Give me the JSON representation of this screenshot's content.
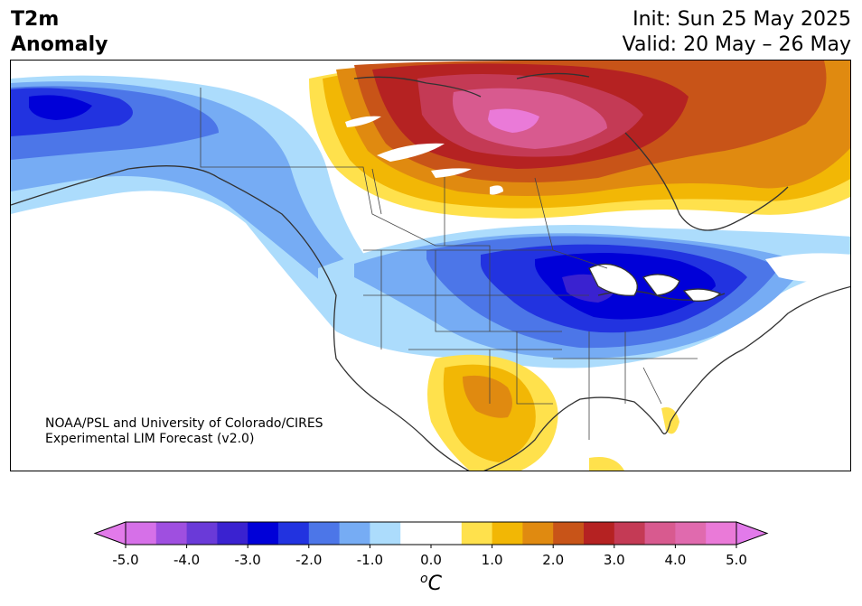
{
  "header": {
    "variable_line1": "T2m",
    "variable_line2": "Anomaly",
    "init": "Init: Sun 25 May 2025",
    "valid": "Valid: 20 May – 26 May"
  },
  "credit": {
    "line1": "NOAA/PSL and University of Colorado/CIRES",
    "line2": "Experimental LIM Forecast (v2.0)"
  },
  "colorbar": {
    "unit_base": "o",
    "unit_main": "C",
    "ticks": [
      "-5.0",
      "-4.0",
      "-3.0",
      "-2.0",
      "-1.0",
      "0.0",
      "1.0",
      "2.0",
      "3.0",
      "4.0",
      "5.0"
    ],
    "min": -5.0,
    "max": 5.0,
    "step": 0.5,
    "colors": [
      "#d670e8",
      "#9f4fe0",
      "#6a3ad8",
      "#3a22d0",
      "#0000d8",
      "#2233e0",
      "#4c76e8",
      "#76acf4",
      "#acdcfc",
      "#ffffff",
      "#ffffff",
      "#ffe14c",
      "#f2b705",
      "#e08a10",
      "#c85418",
      "#b52222",
      "#c43a55",
      "#d85a8f",
      "#e06aae",
      "#ea7ad8"
    ],
    "under_color": "#e27aea",
    "over_color": "#e27aea"
  }
}
